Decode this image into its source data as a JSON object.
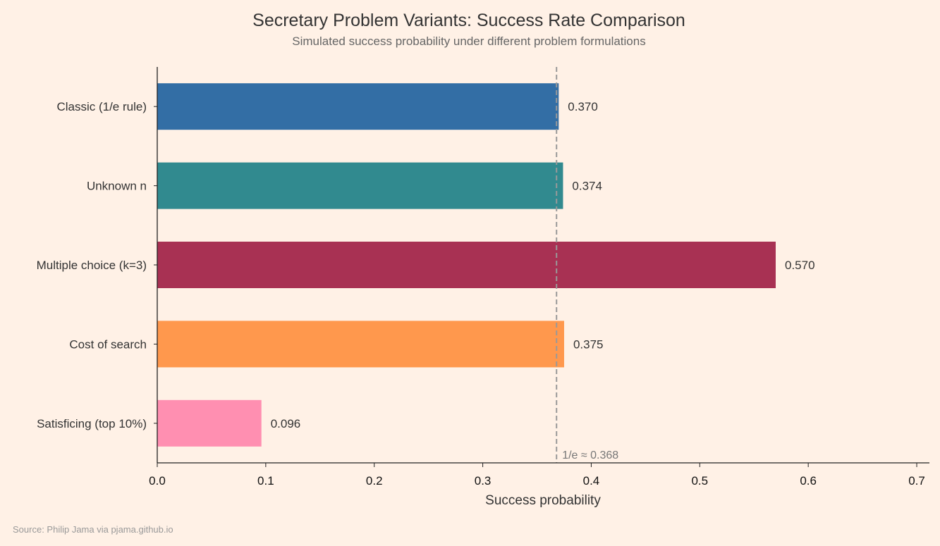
{
  "chart_data": {
    "type": "bar",
    "orientation": "horizontal",
    "title": "Secretary Problem Variants: Success Rate Comparison",
    "subtitle": "Simulated success probability under different problem formulations",
    "xlabel": "Success probability",
    "ylabel": "",
    "xlim": [
      0,
      0.712
    ],
    "xticks": [
      "0.0",
      "0.1",
      "0.2",
      "0.3",
      "0.4",
      "0.5",
      "0.6",
      "0.7"
    ],
    "grid": false,
    "categories": [
      "Classic (1/e rule)",
      "Unknown n",
      "Multiple choice (k=3)",
      "Cost of search",
      "Satisficing (top 10%)"
    ],
    "values": [
      0.37,
      0.374,
      0.57,
      0.375,
      0.096
    ],
    "data_labels": [
      "0.370",
      "0.374",
      "0.570",
      "0.375",
      "0.096"
    ],
    "colors": [
      "#336ea5",
      "#318a8f",
      "#a83153",
      "#ff984d",
      "#ff8fb1"
    ],
    "reference_line": {
      "value": 0.368,
      "label": "1/e ≈ 0.368",
      "style": "dashed",
      "color": "#999999"
    },
    "source": "Source: Philip Jama via pjama.github.io"
  }
}
